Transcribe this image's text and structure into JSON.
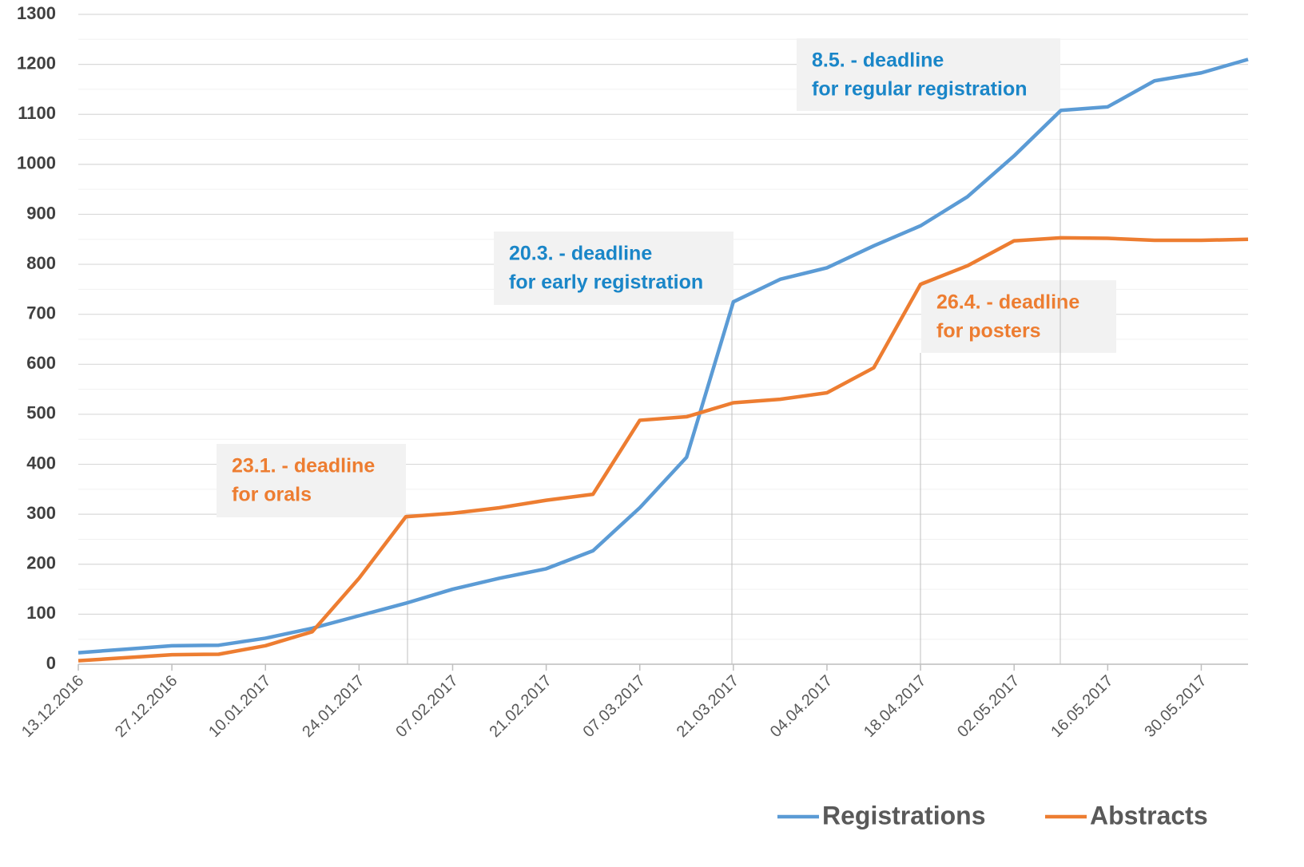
{
  "chart_data": {
    "type": "line",
    "x": [
      "13.12.2016",
      "20.12.2016",
      "27.12.2016",
      "03.01.2017",
      "10.01.2017",
      "17.01.2017",
      "24.01.2017",
      "31.01.2017",
      "07.02.2017",
      "14.02.2017",
      "21.02.2017",
      "28.02.2017",
      "07.03.2017",
      "14.03.2017",
      "21.03.2017",
      "28.03.2017",
      "04.04.2017",
      "11.04.2017",
      "18.04.2017",
      "25.04.2017",
      "02.05.2017",
      "09.05.2017",
      "16.05.2017",
      "23.05.2017",
      "30.05.2017",
      "06.06.2017"
    ],
    "series": [
      {
        "name": "Registrations",
        "color": "#5b9bd5",
        "values": [
          23,
          30,
          37,
          38,
          52,
          72,
          97,
          122,
          150,
          172,
          191,
          227,
          313,
          414,
          725,
          770,
          793,
          837,
          877,
          935,
          1017,
          1108,
          1115,
          1167,
          1183,
          1210
        ]
      },
      {
        "name": "Abstracts",
        "color": "#ed7d31",
        "values": [
          7,
          13,
          19,
          20,
          37,
          65,
          172,
          295,
          302,
          313,
          328,
          340,
          488,
          495,
          523,
          530,
          543,
          593,
          760,
          797,
          847,
          853,
          852,
          848,
          848,
          850
        ]
      }
    ],
    "xlim": [
      "13.12.2016",
      "06.06.2017"
    ],
    "xticks": [
      "13.12.2016",
      "27.12.2016",
      "10.01.2017",
      "24.01.2017",
      "07.02.2017",
      "21.02.2017",
      "07.03.2017",
      "21.03.2017",
      "04.04.2017",
      "18.04.2017",
      "02.05.2017",
      "16.05.2017",
      "30.05.2017"
    ],
    "ylim": [
      0,
      1300
    ],
    "yticks": [
      0,
      100,
      200,
      300,
      400,
      500,
      600,
      700,
      800,
      900,
      1000,
      1100,
      1200,
      1300
    ],
    "grid": true,
    "legend": "bottom-right",
    "annotations": [
      {
        "text": [
          "23.1. - deadline",
          "for orals"
        ],
        "color": "#ed7d31"
      },
      {
        "text": [
          "20.3. - deadline",
          "for early registration"
        ],
        "color": "#1a86c8"
      },
      {
        "text": [
          "26.4. - deadline",
          "for posters"
        ],
        "color": "#ed7d31"
      },
      {
        "text": [
          "8.5. - deadline",
          "for regular registration"
        ],
        "color": "#1a86c8"
      }
    ]
  }
}
